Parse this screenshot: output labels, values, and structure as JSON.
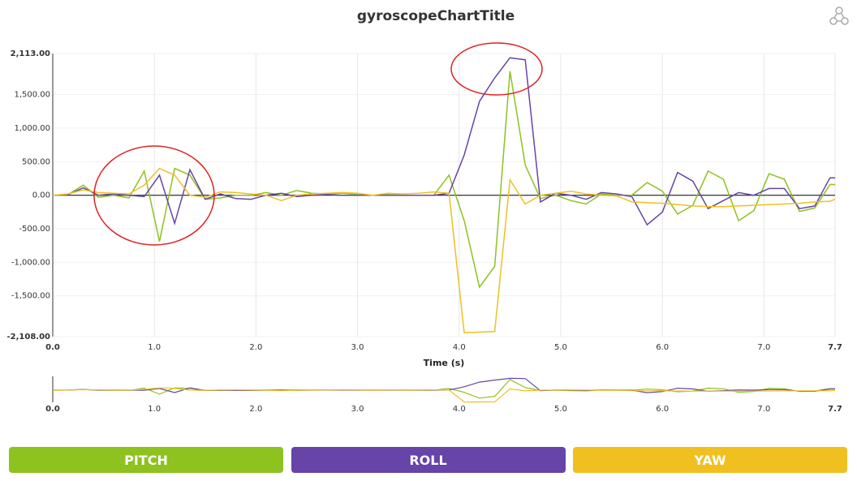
{
  "chart_data": {
    "type": "line",
    "title": "gyroscopeChartTitle",
    "x_label": "Time (s)",
    "x": [
      0,
      0.15,
      0.3,
      0.45,
      0.6,
      0.75,
      0.9,
      1.05,
      1.2,
      1.35,
      1.5,
      1.65,
      1.8,
      1.95,
      2.1,
      2.25,
      2.4,
      2.55,
      2.7,
      2.85,
      3.0,
      3.15,
      3.3,
      3.45,
      3.6,
      3.75,
      3.9,
      4.05,
      4.2,
      4.35,
      4.5,
      4.65,
      4.8,
      4.95,
      5.1,
      5.25,
      5.4,
      5.55,
      5.7,
      5.85,
      6.0,
      6.15,
      6.3,
      6.45,
      6.6,
      6.75,
      6.9,
      7.05,
      7.2,
      7.35,
      7.5,
      7.65,
      7.7
    ],
    "series": [
      {
        "name": "PITCH",
        "color": "#8dc21f",
        "values": [
          0,
          10,
          150,
          -30,
          0,
          -40,
          360,
          -690,
          400,
          300,
          -60,
          -40,
          0,
          0,
          40,
          0,
          70,
          30,
          20,
          30,
          10,
          0,
          10,
          0,
          0,
          0,
          300,
          -380,
          -1370,
          -1060,
          1850,
          450,
          -50,
          0,
          -80,
          -130,
          20,
          0,
          0,
          190,
          60,
          -280,
          -150,
          360,
          240,
          -380,
          -230,
          320,
          240,
          -240,
          -190,
          160,
          160
        ]
      },
      {
        "name": "ROLL",
        "color": "#6644a8",
        "values": [
          0,
          10,
          110,
          0,
          20,
          0,
          -20,
          300,
          -420,
          380,
          -60,
          20,
          -50,
          -60,
          0,
          30,
          -20,
          0,
          10,
          0,
          0,
          0,
          0,
          0,
          0,
          0,
          30,
          600,
          1400,
          1750,
          2050,
          2020,
          -100,
          30,
          0,
          -60,
          40,
          20,
          -20,
          -440,
          -250,
          340,
          210,
          -200,
          -80,
          40,
          0,
          100,
          100,
          -200,
          -160,
          260,
          260
        ]
      },
      {
        "name": "YAW",
        "color": "#f0c020",
        "values": [
          0,
          20,
          80,
          40,
          30,
          20,
          150,
          400,
          300,
          0,
          -30,
          50,
          40,
          20,
          0,
          -80,
          0,
          20,
          30,
          40,
          30,
          0,
          30,
          20,
          30,
          50,
          30,
          -2050,
          -2040,
          -2030,
          230,
          -130,
          0,
          30,
          60,
          20,
          0,
          -10,
          -100,
          -110,
          -120,
          -140,
          -160,
          -170,
          -170,
          -160,
          -150,
          -140,
          -130,
          -120,
          -100,
          -90,
          -60
        ]
      }
    ],
    "xlim": [
      0,
      7.7
    ],
    "xticks": [
      {
        "value": 0,
        "label": "0.0"
      },
      {
        "value": 1,
        "label": "1.0"
      },
      {
        "value": 2,
        "label": "2.0"
      },
      {
        "value": 3,
        "label": "3.0"
      },
      {
        "value": 4,
        "label": "4.0"
      },
      {
        "value": 5,
        "label": "5.0"
      },
      {
        "value": 6,
        "label": "6.0"
      },
      {
        "value": 7,
        "label": "7.0"
      },
      {
        "value": 7.7,
        "label": "7.7"
      }
    ],
    "ylim": [
      -2108,
      2113
    ],
    "yticks": [
      {
        "value": 2113,
        "label": "2,113.00"
      },
      {
        "value": 1500,
        "label": "1,500.00"
      },
      {
        "value": 1000,
        "label": "1,000.00"
      },
      {
        "value": 500,
        "label": "500.00"
      },
      {
        "value": 0,
        "label": "0.00"
      },
      {
        "value": -500,
        "label": "-500.00"
      },
      {
        "value": -1000,
        "label": "-1,000.00"
      },
      {
        "value": -1500,
        "label": "-1,500.00"
      },
      {
        "value": -2108,
        "label": "-2,108.00"
      }
    ],
    "grid": true
  }
}
